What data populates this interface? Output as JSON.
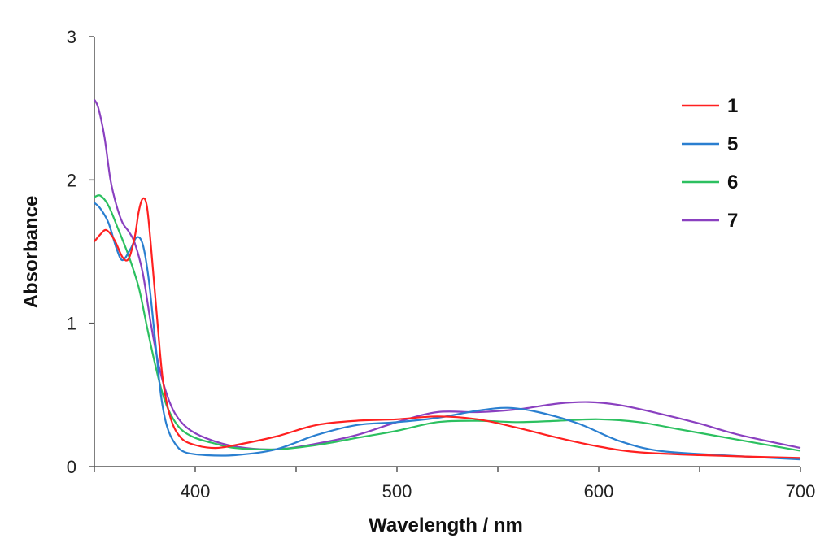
{
  "chart_data": {
    "type": "line",
    "title": "",
    "xlabel": "Wavelength / nm",
    "ylabel": "Absorbance",
    "xlim": [
      350,
      700
    ],
    "ylim": [
      0,
      3
    ],
    "grid": false,
    "legend_position": "top-right",
    "x_tick_labels": [
      "400",
      "500",
      "600",
      "700"
    ],
    "y_tick_labels": [
      "0",
      "1",
      "2",
      "3"
    ],
    "series": [
      {
        "name": "1",
        "color": "#ff2020",
        "points": [
          [
            350,
            1.57
          ],
          [
            353,
            1.62
          ],
          [
            356,
            1.65
          ],
          [
            360,
            1.58
          ],
          [
            364,
            1.46
          ],
          [
            367,
            1.45
          ],
          [
            370,
            1.6
          ],
          [
            372,
            1.78
          ],
          [
            374,
            1.87
          ],
          [
            376,
            1.82
          ],
          [
            378,
            1.55
          ],
          [
            381,
            1.05
          ],
          [
            384,
            0.6
          ],
          [
            388,
            0.33
          ],
          [
            393,
            0.2
          ],
          [
            400,
            0.15
          ],
          [
            410,
            0.13
          ],
          [
            420,
            0.15
          ],
          [
            440,
            0.21
          ],
          [
            460,
            0.29
          ],
          [
            480,
            0.32
          ],
          [
            500,
            0.33
          ],
          [
            520,
            0.35
          ],
          [
            540,
            0.33
          ],
          [
            560,
            0.27
          ],
          [
            580,
            0.2
          ],
          [
            600,
            0.14
          ],
          [
            620,
            0.1
          ],
          [
            650,
            0.08
          ],
          [
            700,
            0.06
          ]
        ]
      },
      {
        "name": "5",
        "color": "#2a7fd0",
        "points": [
          [
            350,
            1.84
          ],
          [
            353,
            1.8
          ],
          [
            357,
            1.7
          ],
          [
            361,
            1.52
          ],
          [
            364,
            1.44
          ],
          [
            368,
            1.52
          ],
          [
            371,
            1.6
          ],
          [
            374,
            1.55
          ],
          [
            377,
            1.3
          ],
          [
            380,
            0.9
          ],
          [
            383,
            0.5
          ],
          [
            386,
            0.28
          ],
          [
            390,
            0.16
          ],
          [
            395,
            0.1
          ],
          [
            405,
            0.08
          ],
          [
            420,
            0.08
          ],
          [
            440,
            0.12
          ],
          [
            460,
            0.22
          ],
          [
            480,
            0.29
          ],
          [
            500,
            0.31
          ],
          [
            520,
            0.34
          ],
          [
            540,
            0.39
          ],
          [
            555,
            0.41
          ],
          [
            570,
            0.38
          ],
          [
            590,
            0.3
          ],
          [
            610,
            0.18
          ],
          [
            630,
            0.11
          ],
          [
            660,
            0.08
          ],
          [
            700,
            0.05
          ]
        ]
      },
      {
        "name": "6",
        "color": "#2cc060",
        "points": [
          [
            350,
            1.88
          ],
          [
            353,
            1.89
          ],
          [
            357,
            1.82
          ],
          [
            362,
            1.65
          ],
          [
            367,
            1.47
          ],
          [
            372,
            1.25
          ],
          [
            376,
            0.98
          ],
          [
            380,
            0.72
          ],
          [
            384,
            0.5
          ],
          [
            388,
            0.36
          ],
          [
            393,
            0.26
          ],
          [
            400,
            0.2
          ],
          [
            410,
            0.16
          ],
          [
            420,
            0.13
          ],
          [
            440,
            0.12
          ],
          [
            460,
            0.15
          ],
          [
            480,
            0.2
          ],
          [
            500,
            0.25
          ],
          [
            520,
            0.31
          ],
          [
            540,
            0.32
          ],
          [
            560,
            0.31
          ],
          [
            580,
            0.32
          ],
          [
            600,
            0.33
          ],
          [
            620,
            0.31
          ],
          [
            640,
            0.26
          ],
          [
            660,
            0.21
          ],
          [
            680,
            0.16
          ],
          [
            700,
            0.11
          ]
        ]
      },
      {
        "name": "7",
        "color": "#8a40c0",
        "points": [
          [
            350,
            2.56
          ],
          [
            352,
            2.5
          ],
          [
            355,
            2.3
          ],
          [
            358,
            2.0
          ],
          [
            361,
            1.82
          ],
          [
            364,
            1.7
          ],
          [
            367,
            1.64
          ],
          [
            370,
            1.56
          ],
          [
            374,
            1.35
          ],
          [
            378,
            1.0
          ],
          [
            382,
            0.7
          ],
          [
            386,
            0.5
          ],
          [
            390,
            0.37
          ],
          [
            396,
            0.27
          ],
          [
            405,
            0.2
          ],
          [
            420,
            0.14
          ],
          [
            440,
            0.12
          ],
          [
            460,
            0.16
          ],
          [
            480,
            0.22
          ],
          [
            500,
            0.31
          ],
          [
            520,
            0.38
          ],
          [
            540,
            0.38
          ],
          [
            560,
            0.4
          ],
          [
            580,
            0.44
          ],
          [
            595,
            0.45
          ],
          [
            610,
            0.43
          ],
          [
            630,
            0.37
          ],
          [
            650,
            0.3
          ],
          [
            670,
            0.22
          ],
          [
            700,
            0.13
          ]
        ]
      }
    ]
  }
}
